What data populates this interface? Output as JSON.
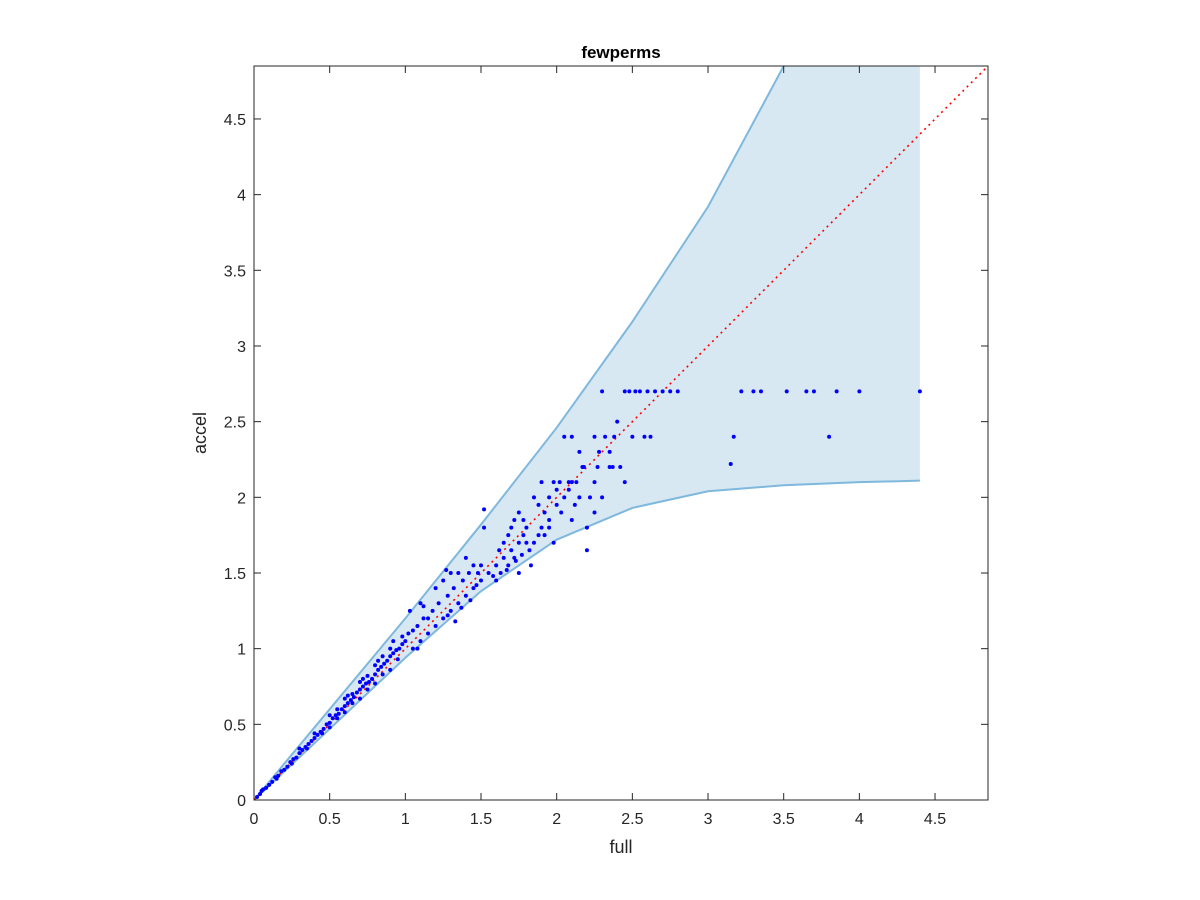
{
  "chart_data": {
    "type": "scatter",
    "title": "fewperms",
    "xlabel": "full",
    "ylabel": "accel",
    "xlim": [
      0,
      4.85
    ],
    "ylim": [
      0,
      4.85
    ],
    "xticks": [
      0,
      0.5,
      1,
      1.5,
      2,
      2.5,
      3,
      3.5,
      4,
      4.5
    ],
    "yticks": [
      0,
      0.5,
      1,
      1.5,
      2,
      2.5,
      3,
      3.5,
      4,
      4.5
    ],
    "xtick_labels": [
      "0",
      "0.5",
      "1",
      "1.5",
      "2",
      "2.5",
      "3",
      "3.5",
      "4",
      "4.5"
    ],
    "ytick_labels": [
      "0",
      "0.5",
      "1",
      "1.5",
      "2",
      "2.5",
      "3",
      "3.5",
      "4",
      "4.5"
    ],
    "grid": false,
    "colors": {
      "points": "#0000ff",
      "band_fill": "#d8e8f3",
      "band_edge": "#7fb8dd",
      "reference_line": "#ff0000",
      "axes": "#262626"
    },
    "band": {
      "upper": [
        [
          0,
          0
        ],
        [
          0.5,
          0.6
        ],
        [
          1,
          1.2
        ],
        [
          1.5,
          1.82
        ],
        [
          2,
          2.46
        ],
        [
          2.5,
          3.16
        ],
        [
          3,
          3.92
        ],
        [
          3.5,
          4.85
        ]
      ],
      "lower": [
        [
          0,
          0
        ],
        [
          0.5,
          0.47
        ],
        [
          1,
          0.94
        ],
        [
          1.5,
          1.38
        ],
        [
          2,
          1.72
        ],
        [
          2.5,
          1.93
        ],
        [
          3,
          2.04
        ],
        [
          3.5,
          2.08
        ],
        [
          4,
          2.1
        ],
        [
          4.4,
          2.11
        ]
      ],
      "right_x": 4.4
    },
    "reference_line": [
      [
        0,
        0
      ],
      [
        4.85,
        4.85
      ]
    ],
    "series": [
      {
        "type": "scatter",
        "points": [
          [
            0.02,
            0.02
          ],
          [
            0.04,
            0.04
          ],
          [
            0.06,
            0.07
          ],
          [
            0.08,
            0.08
          ],
          [
            0.1,
            0.1
          ],
          [
            0.12,
            0.12
          ],
          [
            0.14,
            0.15
          ],
          [
            0.16,
            0.16
          ],
          [
            0.18,
            0.19
          ],
          [
            0.2,
            0.2
          ],
          [
            0.22,
            0.22
          ],
          [
            0.24,
            0.25
          ],
          [
            0.26,
            0.27
          ],
          [
            0.28,
            0.28
          ],
          [
            0.3,
            0.31
          ],
          [
            0.32,
            0.33
          ],
          [
            0.34,
            0.35
          ],
          [
            0.36,
            0.37
          ],
          [
            0.38,
            0.39
          ],
          [
            0.4,
            0.41
          ],
          [
            0.42,
            0.43
          ],
          [
            0.44,
            0.45
          ],
          [
            0.46,
            0.47
          ],
          [
            0.48,
            0.5
          ],
          [
            0.5,
            0.51
          ],
          [
            0.52,
            0.54
          ],
          [
            0.54,
            0.56
          ],
          [
            0.56,
            0.57
          ],
          [
            0.58,
            0.6
          ],
          [
            0.6,
            0.62
          ],
          [
            0.62,
            0.64
          ],
          [
            0.64,
            0.66
          ],
          [
            0.66,
            0.68
          ],
          [
            0.68,
            0.71
          ],
          [
            0.7,
            0.73
          ],
          [
            0.72,
            0.75
          ],
          [
            0.74,
            0.77
          ],
          [
            0.76,
            0.78
          ],
          [
            0.78,
            0.8
          ],
          [
            0.8,
            0.83
          ],
          [
            0.82,
            0.86
          ],
          [
            0.84,
            0.88
          ],
          [
            0.86,
            0.9
          ],
          [
            0.88,
            0.92
          ],
          [
            0.9,
            0.95
          ],
          [
            0.92,
            0.97
          ],
          [
            0.94,
            0.99
          ],
          [
            0.96,
            1.0
          ],
          [
            0.98,
            1.03
          ],
          [
            1.0,
            1.05
          ],
          [
            0.05,
            0.06
          ],
          [
            0.15,
            0.14
          ],
          [
            0.25,
            0.24
          ],
          [
            0.35,
            0.34
          ],
          [
            0.45,
            0.44
          ],
          [
            0.55,
            0.54
          ],
          [
            0.65,
            0.64
          ],
          [
            0.75,
            0.73
          ],
          [
            0.85,
            0.83
          ],
          [
            0.95,
            0.93
          ],
          [
            0.3,
            0.34
          ],
          [
            0.4,
            0.44
          ],
          [
            0.5,
            0.56
          ],
          [
            0.6,
            0.67
          ],
          [
            0.7,
            0.78
          ],
          [
            0.8,
            0.89
          ],
          [
            0.9,
            1.0
          ],
          [
            0.55,
            0.6
          ],
          [
            0.65,
            0.7
          ],
          [
            0.75,
            0.82
          ],
          [
            0.5,
            0.48
          ],
          [
            0.6,
            0.58
          ],
          [
            0.7,
            0.67
          ],
          [
            0.8,
            0.77
          ],
          [
            0.9,
            0.86
          ],
          [
            0.62,
            0.69
          ],
          [
            0.72,
            0.8
          ],
          [
            0.82,
            0.92
          ],
          [
            0.92,
            1.05
          ],
          [
            0.85,
            0.95
          ],
          [
            1.02,
            1.1
          ],
          [
            1.05,
            1.0
          ],
          [
            1.08,
            1.15
          ],
          [
            1.1,
            1.05
          ],
          [
            1.12,
            1.2
          ],
          [
            1.15,
            1.1
          ],
          [
            1.18,
            1.25
          ],
          [
            1.2,
            1.15
          ],
          [
            1.22,
            1.3
          ],
          [
            1.25,
            1.2
          ],
          [
            1.28,
            1.35
          ],
          [
            1.3,
            1.25
          ],
          [
            1.32,
            1.4
          ],
          [
            1.35,
            1.3
          ],
          [
            1.38,
            1.45
          ],
          [
            1.4,
            1.35
          ],
          [
            1.42,
            1.5
          ],
          [
            1.45,
            1.4
          ],
          [
            1.48,
            1.5
          ],
          [
            1.5,
            1.45
          ],
          [
            1.03,
            1.25
          ],
          [
            1.1,
            1.3
          ],
          [
            1.2,
            1.4
          ],
          [
            1.25,
            1.45
          ],
          [
            1.3,
            1.5
          ],
          [
            1.35,
            1.5
          ],
          [
            1.15,
            1.2
          ],
          [
            1.05,
            1.12
          ],
          [
            0.98,
            1.08
          ],
          [
            1.08,
            1.0
          ],
          [
            1.28,
            1.22
          ],
          [
            1.33,
            1.18
          ],
          [
            1.37,
            1.27
          ],
          [
            1.43,
            1.32
          ],
          [
            1.47,
            1.42
          ],
          [
            1.5,
            1.55
          ],
          [
            1.27,
            1.52
          ],
          [
            1.4,
            1.6
          ],
          [
            1.45,
            1.55
          ],
          [
            1.12,
            1.28
          ],
          [
            1.52,
            1.92
          ],
          [
            1.52,
            1.8
          ],
          [
            1.55,
            1.5
          ],
          [
            1.58,
            1.48
          ],
          [
            1.6,
            1.55
          ],
          [
            1.62,
            1.65
          ],
          [
            1.65,
            1.6
          ],
          [
            1.65,
            1.7
          ],
          [
            1.68,
            1.75
          ],
          [
            1.68,
            1.55
          ],
          [
            1.7,
            1.8
          ],
          [
            1.7,
            1.65
          ],
          [
            1.72,
            1.85
          ],
          [
            1.72,
            1.6
          ],
          [
            1.75,
            1.9
          ],
          [
            1.75,
            1.7
          ],
          [
            1.78,
            1.85
          ],
          [
            1.78,
            1.75
          ],
          [
            1.8,
            1.8
          ],
          [
            1.8,
            1.7
          ],
          [
            1.6,
            1.45
          ],
          [
            1.63,
            1.5
          ],
          [
            1.67,
            1.52
          ],
          [
            1.73,
            1.58
          ],
          [
            1.77,
            1.62
          ],
          [
            1.82,
            1.65
          ],
          [
            1.85,
            1.7
          ],
          [
            1.88,
            1.75
          ],
          [
            1.9,
            1.8
          ],
          [
            1.92,
            1.75
          ],
          [
            1.85,
            2.0
          ],
          [
            1.88,
            1.95
          ],
          [
            1.9,
            2.1
          ],
          [
            1.92,
            1.9
          ],
          [
            1.95,
            2.0
          ],
          [
            1.95,
            1.85
          ],
          [
            1.98,
            2.1
          ],
          [
            2.0,
            1.95
          ],
          [
            2.0,
            2.05
          ],
          [
            2.02,
            2.1
          ],
          [
            2.05,
            2.0
          ],
          [
            2.05,
            2.4
          ],
          [
            2.08,
            2.1
          ],
          [
            2.1,
            1.85
          ],
          [
            2.1,
            2.1
          ],
          [
            2.12,
            1.95
          ],
          [
            2.15,
            2.3
          ],
          [
            2.15,
            2.0
          ],
          [
            2.18,
            2.2
          ],
          [
            2.2,
            1.8
          ],
          [
            2.2,
            1.65
          ],
          [
            2.22,
            2.0
          ],
          [
            2.25,
            2.1
          ],
          [
            2.25,
            1.9
          ],
          [
            2.28,
            2.3
          ],
          [
            2.3,
            2.7
          ],
          [
            2.3,
            2.0
          ],
          [
            2.32,
            2.4
          ],
          [
            2.35,
            2.3
          ],
          [
            2.35,
            2.2
          ],
          [
            2.38,
            2.4
          ],
          [
            2.4,
            2.5
          ],
          [
            2.42,
            2.2
          ],
          [
            2.45,
            2.7
          ],
          [
            2.45,
            2.1
          ],
          [
            2.48,
            2.7
          ],
          [
            2.5,
            2.4
          ],
          [
            2.52,
            2.7
          ],
          [
            2.55,
            2.7
          ],
          [
            2.58,
            2.4
          ],
          [
            2.6,
            2.7
          ],
          [
            2.62,
            2.4
          ],
          [
            2.65,
            2.7
          ],
          [
            2.7,
            2.7
          ],
          [
            2.75,
            2.7
          ],
          [
            2.8,
            2.7
          ],
          [
            3.15,
            2.22
          ],
          [
            3.17,
            2.4
          ],
          [
            3.22,
            2.7
          ],
          [
            3.3,
            2.7
          ],
          [
            3.35,
            2.7
          ],
          [
            3.52,
            2.7
          ],
          [
            3.65,
            2.7
          ],
          [
            3.7,
            2.7
          ],
          [
            3.8,
            2.4
          ],
          [
            3.85,
            2.7
          ],
          [
            4.0,
            2.7
          ],
          [
            4.4,
            2.7
          ],
          [
            2.1,
            2.4
          ],
          [
            2.25,
            2.4
          ],
          [
            1.95,
            1.8
          ],
          [
            1.98,
            1.7
          ],
          [
            2.03,
            1.9
          ],
          [
            2.08,
            2.05
          ],
          [
            2.13,
            2.1
          ],
          [
            2.17,
            2.2
          ],
          [
            2.27,
            2.2
          ],
          [
            2.37,
            2.2
          ],
          [
            1.75,
            1.5
          ],
          [
            1.83,
            1.55
          ]
        ]
      }
    ]
  }
}
